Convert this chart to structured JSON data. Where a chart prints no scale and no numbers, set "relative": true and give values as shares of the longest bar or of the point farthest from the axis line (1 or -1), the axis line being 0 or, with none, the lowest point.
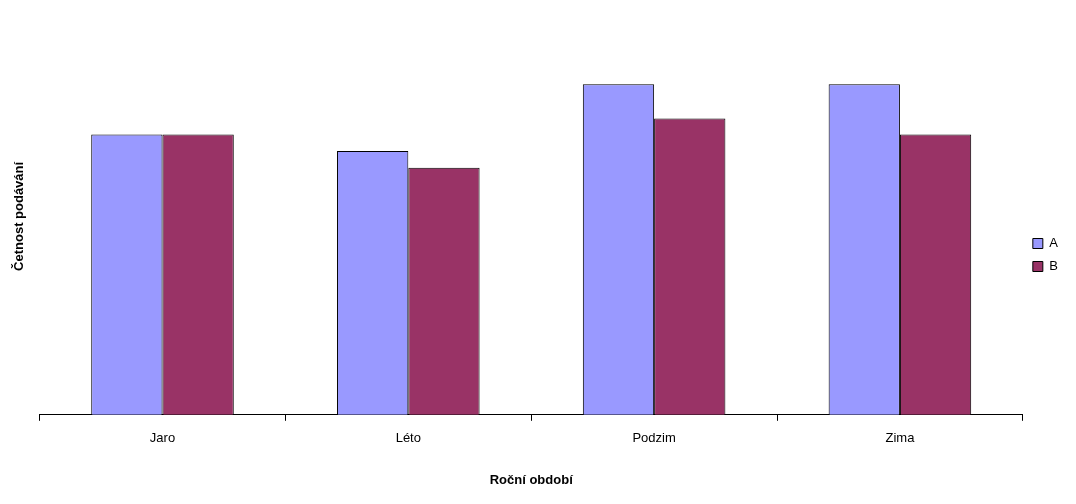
{
  "chart_data": {
    "type": "bar",
    "xlabel": "Roční období",
    "ylabel": "Četnost podávání",
    "categories": [
      "Jaro",
      "Léto",
      "Podzim",
      "Zima"
    ],
    "relative": true,
    "legend": "right",
    "series": [
      {
        "name": "A",
        "color": "#9999ff",
        "values": [
          0.848,
          0.798,
          1,
          1
        ]
      },
      {
        "name": "B",
        "color": "#993366",
        "values": [
          0.848,
          0.747,
          0.896,
          0.848
        ]
      }
    ]
  }
}
